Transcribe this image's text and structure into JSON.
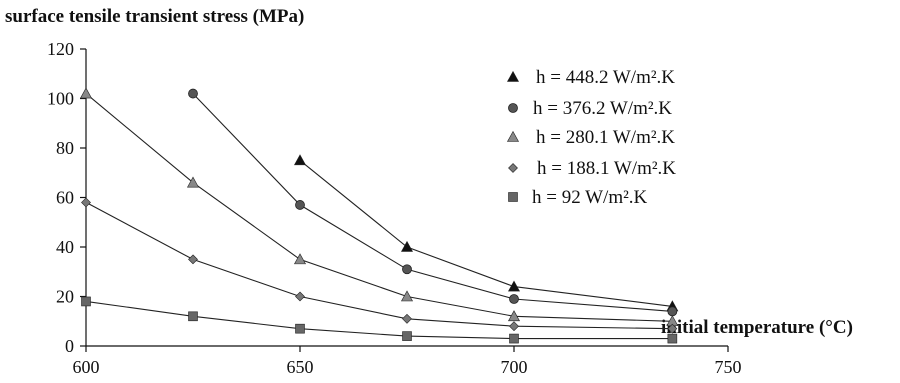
{
  "chart_data": {
    "type": "line",
    "title": "surface tensile transient stress (MPa)",
    "xlabel": "initial temperature (°C)",
    "ylabel": "",
    "xlim": [
      600,
      750
    ],
    "ylim": [
      0,
      120
    ],
    "xticks": [
      600,
      650,
      700,
      750
    ],
    "yticks": [
      0,
      20,
      40,
      60,
      80,
      100,
      120
    ],
    "xtick_labels": [
      "600",
      "650",
      "700",
      "750"
    ],
    "ytick_labels": [
      "0",
      "20",
      "40",
      "60",
      "80",
      "100",
      "120"
    ],
    "grid": false,
    "legend_position": "right",
    "series": [
      {
        "name": "h = 448.2 W/m².K",
        "marker": "triangle-filled",
        "color": "#111111",
        "x": [
          650,
          675,
          700,
          737
        ],
        "y": [
          75,
          40,
          24,
          16
        ]
      },
      {
        "name": "h = 376.2 W/m².K",
        "marker": "circle",
        "color": "#555555",
        "x": [
          625,
          650,
          675,
          700,
          737
        ],
        "y": [
          102,
          57,
          31,
          19,
          14
        ]
      },
      {
        "name": "h = 280.1 W/m².K",
        "marker": "triangle-gray",
        "color": "#888888",
        "x": [
          600,
          625,
          650,
          675,
          700,
          737
        ],
        "y": [
          102,
          66,
          35,
          20,
          12,
          10
        ]
      },
      {
        "name": "h = 188.1 W/m².K",
        "marker": "diamond",
        "color": "#777777",
        "x": [
          600,
          625,
          650,
          675,
          700,
          737
        ],
        "y": [
          58,
          35,
          20,
          11,
          8,
          7
        ]
      },
      {
        "name": "h = 92 W/m².K",
        "marker": "square",
        "color": "#666666",
        "x": [
          600,
          625,
          650,
          675,
          700,
          737
        ],
        "y": [
          18,
          12,
          7,
          4,
          3,
          3
        ]
      }
    ]
  }
}
